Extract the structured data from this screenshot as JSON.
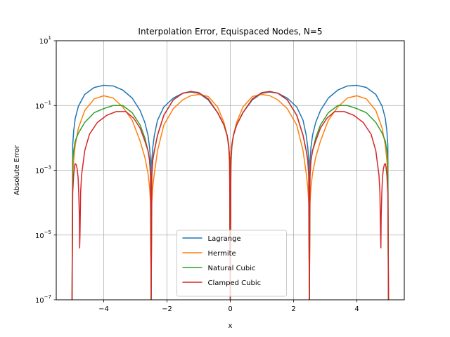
{
  "chart_data": {
    "type": "line",
    "title": "Interpolation Error, Equispaced Nodes, N=5",
    "xlabel": "x",
    "ylabel": "Absolute Error",
    "xlim": [
      -5.5,
      5.5
    ],
    "ylim": [
      1e-07,
      10
    ],
    "yscale": "log",
    "grid": true,
    "legend_position": "lower center",
    "x_ticks": [
      -4,
      -2,
      0,
      2,
      4
    ],
    "x_tick_labels": [
      "−4",
      "−2",
      "0",
      "2",
      "4"
    ],
    "y_ticks": [
      1e-07,
      1e-05,
      0.001,
      0.1,
      10
    ],
    "y_tick_labels": [
      {
        "base": "10",
        "exp": "−7"
      },
      {
        "base": "10",
        "exp": "−5"
      },
      {
        "base": "10",
        "exp": "−3"
      },
      {
        "base": "10",
        "exp": "−1"
      },
      {
        "base": "10",
        "exp": "1"
      }
    ],
    "nodes": [
      -5,
      -2.5,
      0,
      2.5,
      5
    ],
    "series": [
      {
        "name": "Lagrange",
        "color": "#1f77b4",
        "x": [
          -5,
          -4.98,
          -4.95,
          -4.9,
          -4.8,
          -4.6,
          -4.3,
          -4.0,
          -3.7,
          -3.4,
          -3.1,
          -2.85,
          -2.7,
          -2.6,
          -2.55,
          -2.52,
          -2.5,
          -2.48,
          -2.45,
          -2.4,
          -2.3,
          -2.1,
          -1.8,
          -1.5,
          -1.25,
          -1.0,
          -0.7,
          -0.4,
          -0.2,
          -0.1,
          -0.05,
          -0.02,
          0,
          0.02,
          0.05,
          0.1,
          0.2,
          0.4,
          0.7,
          1.0,
          1.25,
          1.5,
          1.8,
          2.1,
          2.3,
          2.4,
          2.45,
          2.48,
          2.5,
          2.52,
          2.55,
          2.6,
          2.7,
          2.85,
          3.1,
          3.4,
          3.7,
          4.0,
          4.3,
          4.6,
          4.8,
          4.9,
          4.95,
          4.98,
          5
        ],
        "y": [
          1e-07,
          0.006,
          0.016,
          0.04,
          0.095,
          0.22,
          0.36,
          0.42,
          0.4,
          0.3,
          0.17,
          0.07,
          0.03,
          0.012,
          0.005,
          0.002,
          1e-07,
          0.002,
          0.005,
          0.012,
          0.035,
          0.09,
          0.17,
          0.24,
          0.26,
          0.24,
          0.15,
          0.06,
          0.025,
          0.012,
          0.006,
          0.0022,
          1e-07,
          0.0022,
          0.006,
          0.012,
          0.025,
          0.06,
          0.15,
          0.24,
          0.26,
          0.24,
          0.17,
          0.09,
          0.035,
          0.012,
          0.005,
          0.002,
          1e-07,
          0.002,
          0.005,
          0.012,
          0.03,
          0.07,
          0.17,
          0.3,
          0.4,
          0.42,
          0.36,
          0.22,
          0.095,
          0.04,
          0.016,
          0.006,
          1e-07
        ]
      },
      {
        "name": "Hermite",
        "color": "#ff7f0e",
        "x": [
          -5,
          -4.98,
          -4.95,
          -4.9,
          -4.8,
          -4.6,
          -4.3,
          -4.0,
          -3.7,
          -3.4,
          -3.1,
          -2.85,
          -2.7,
          -2.6,
          -2.55,
          -2.52,
          -2.5,
          -2.48,
          -2.45,
          -2.4,
          -2.3,
          -2.1,
          -1.8,
          -1.5,
          -1.25,
          -1.0,
          -0.7,
          -0.4,
          -0.2,
          -0.1,
          -0.05,
          -0.02,
          0,
          0.02,
          0.05,
          0.1,
          0.2,
          0.4,
          0.7,
          1.0,
          1.25,
          1.5,
          1.8,
          2.1,
          2.3,
          2.4,
          2.45,
          2.48,
          2.5,
          2.52,
          2.55,
          2.6,
          2.7,
          2.85,
          3.1,
          3.4,
          3.7,
          4.0,
          4.3,
          4.6,
          4.8,
          4.9,
          4.95,
          4.98,
          5
        ],
        "y": [
          1e-07,
          0.0005,
          0.002,
          0.006,
          0.02,
          0.07,
          0.16,
          0.2,
          0.17,
          0.09,
          0.035,
          0.008,
          0.0025,
          0.0008,
          0.0003,
          0.0001,
          1e-07,
          0.0001,
          0.0003,
          0.0008,
          0.004,
          0.025,
          0.08,
          0.15,
          0.2,
          0.22,
          0.19,
          0.09,
          0.03,
          0.012,
          0.005,
          0.0012,
          1e-07,
          0.0012,
          0.005,
          0.012,
          0.03,
          0.09,
          0.19,
          0.22,
          0.2,
          0.15,
          0.08,
          0.025,
          0.004,
          0.0008,
          0.0003,
          0.0001,
          1e-07,
          0.0001,
          0.0003,
          0.0008,
          0.0025,
          0.008,
          0.035,
          0.09,
          0.17,
          0.2,
          0.16,
          0.07,
          0.02,
          0.006,
          0.002,
          0.0005,
          1e-07
        ]
      },
      {
        "name": "Natural Cubic",
        "color": "#2ca02c",
        "x": [
          -5,
          -4.98,
          -4.95,
          -4.9,
          -4.8,
          -4.6,
          -4.3,
          -4.0,
          -3.7,
          -3.4,
          -3.1,
          -2.85,
          -2.7,
          -2.6,
          -2.55,
          -2.52,
          -2.5,
          -2.48,
          -2.45,
          -2.4,
          -2.3,
          -2.1,
          -1.8,
          -1.5,
          -1.25,
          -1.0,
          -0.7,
          -0.4,
          -0.2,
          -0.1,
          -0.05,
          -0.02,
          0,
          0.02,
          0.05,
          0.1,
          0.2,
          0.4,
          0.7,
          1.0,
          1.25,
          1.5,
          1.8,
          2.1,
          2.3,
          2.4,
          2.45,
          2.48,
          2.5,
          2.52,
          2.55,
          2.6,
          2.7,
          2.85,
          3.1,
          3.4,
          3.7,
          4.0,
          4.3,
          4.6,
          4.8,
          4.9,
          4.95,
          4.98,
          5
        ],
        "y": [
          1e-07,
          0.002,
          0.004,
          0.008,
          0.014,
          0.03,
          0.06,
          0.08,
          0.1,
          0.1,
          0.06,
          0.025,
          0.01,
          0.004,
          0.002,
          0.0007,
          1e-07,
          0.0007,
          0.002,
          0.004,
          0.012,
          0.05,
          0.15,
          0.24,
          0.27,
          0.25,
          0.16,
          0.06,
          0.025,
          0.012,
          0.006,
          0.0022,
          1e-07,
          0.0022,
          0.006,
          0.012,
          0.025,
          0.06,
          0.16,
          0.25,
          0.27,
          0.24,
          0.15,
          0.05,
          0.012,
          0.004,
          0.002,
          0.0007,
          1e-07,
          0.0007,
          0.002,
          0.004,
          0.01,
          0.025,
          0.06,
          0.1,
          0.1,
          0.08,
          0.06,
          0.03,
          0.014,
          0.008,
          0.004,
          0.002,
          1e-07
        ]
      },
      {
        "name": "Clamped Cubic",
        "color": "#d62728",
        "x": [
          -5,
          -4.98,
          -4.95,
          -4.92,
          -4.9,
          -4.87,
          -4.84,
          -4.81,
          -4.79,
          -4.77,
          -4.76,
          -4.75,
          -4.73,
          -4.7,
          -4.6,
          -4.45,
          -4.2,
          -3.9,
          -3.6,
          -3.3,
          -3.05,
          -2.85,
          -2.7,
          -2.6,
          -2.55,
          -2.52,
          -2.5,
          -2.48,
          -2.45,
          -2.4,
          -2.3,
          -2.1,
          -1.8,
          -1.5,
          -1.25,
          -1.0,
          -0.7,
          -0.4,
          -0.2,
          -0.1,
          -0.05,
          -0.02,
          0,
          0.02,
          0.05,
          0.1,
          0.2,
          0.4,
          0.7,
          1.0,
          1.25,
          1.5,
          1.8,
          2.1,
          2.3,
          2.4,
          2.45,
          2.48,
          2.5,
          2.52,
          2.55,
          2.6,
          2.7,
          2.85,
          3.05,
          3.3,
          3.6,
          3.9,
          4.2,
          4.45,
          4.6,
          4.7,
          4.73,
          4.75,
          4.76,
          4.77,
          4.79,
          4.81,
          4.84,
          4.87,
          4.9,
          4.92,
          4.95,
          4.98,
          5
        ],
        "y": [
          1e-07,
          0.0002,
          0.0007,
          0.0013,
          0.0016,
          0.0015,
          0.0011,
          0.0006,
          0.0002,
          4e-05,
          4e-06,
          1e-05,
          0.0002,
          0.0007,
          0.004,
          0.013,
          0.03,
          0.05,
          0.065,
          0.065,
          0.04,
          0.02,
          0.008,
          0.004,
          0.002,
          0.0007,
          1e-07,
          0.0007,
          0.002,
          0.004,
          0.012,
          0.05,
          0.15,
          0.24,
          0.27,
          0.25,
          0.16,
          0.06,
          0.025,
          0.012,
          0.006,
          0.0022,
          1e-07,
          0.0022,
          0.006,
          0.012,
          0.025,
          0.06,
          0.16,
          0.25,
          0.27,
          0.24,
          0.15,
          0.05,
          0.012,
          0.004,
          0.002,
          0.0007,
          1e-07,
          0.0007,
          0.002,
          0.004,
          0.008,
          0.02,
          0.04,
          0.065,
          0.065,
          0.05,
          0.03,
          0.013,
          0.004,
          0.0007,
          0.0002,
          1e-05,
          4e-06,
          4e-05,
          0.0002,
          0.0006,
          0.0011,
          0.0015,
          0.0016,
          0.0013,
          0.0007,
          0.0002,
          1e-07
        ]
      }
    ]
  }
}
